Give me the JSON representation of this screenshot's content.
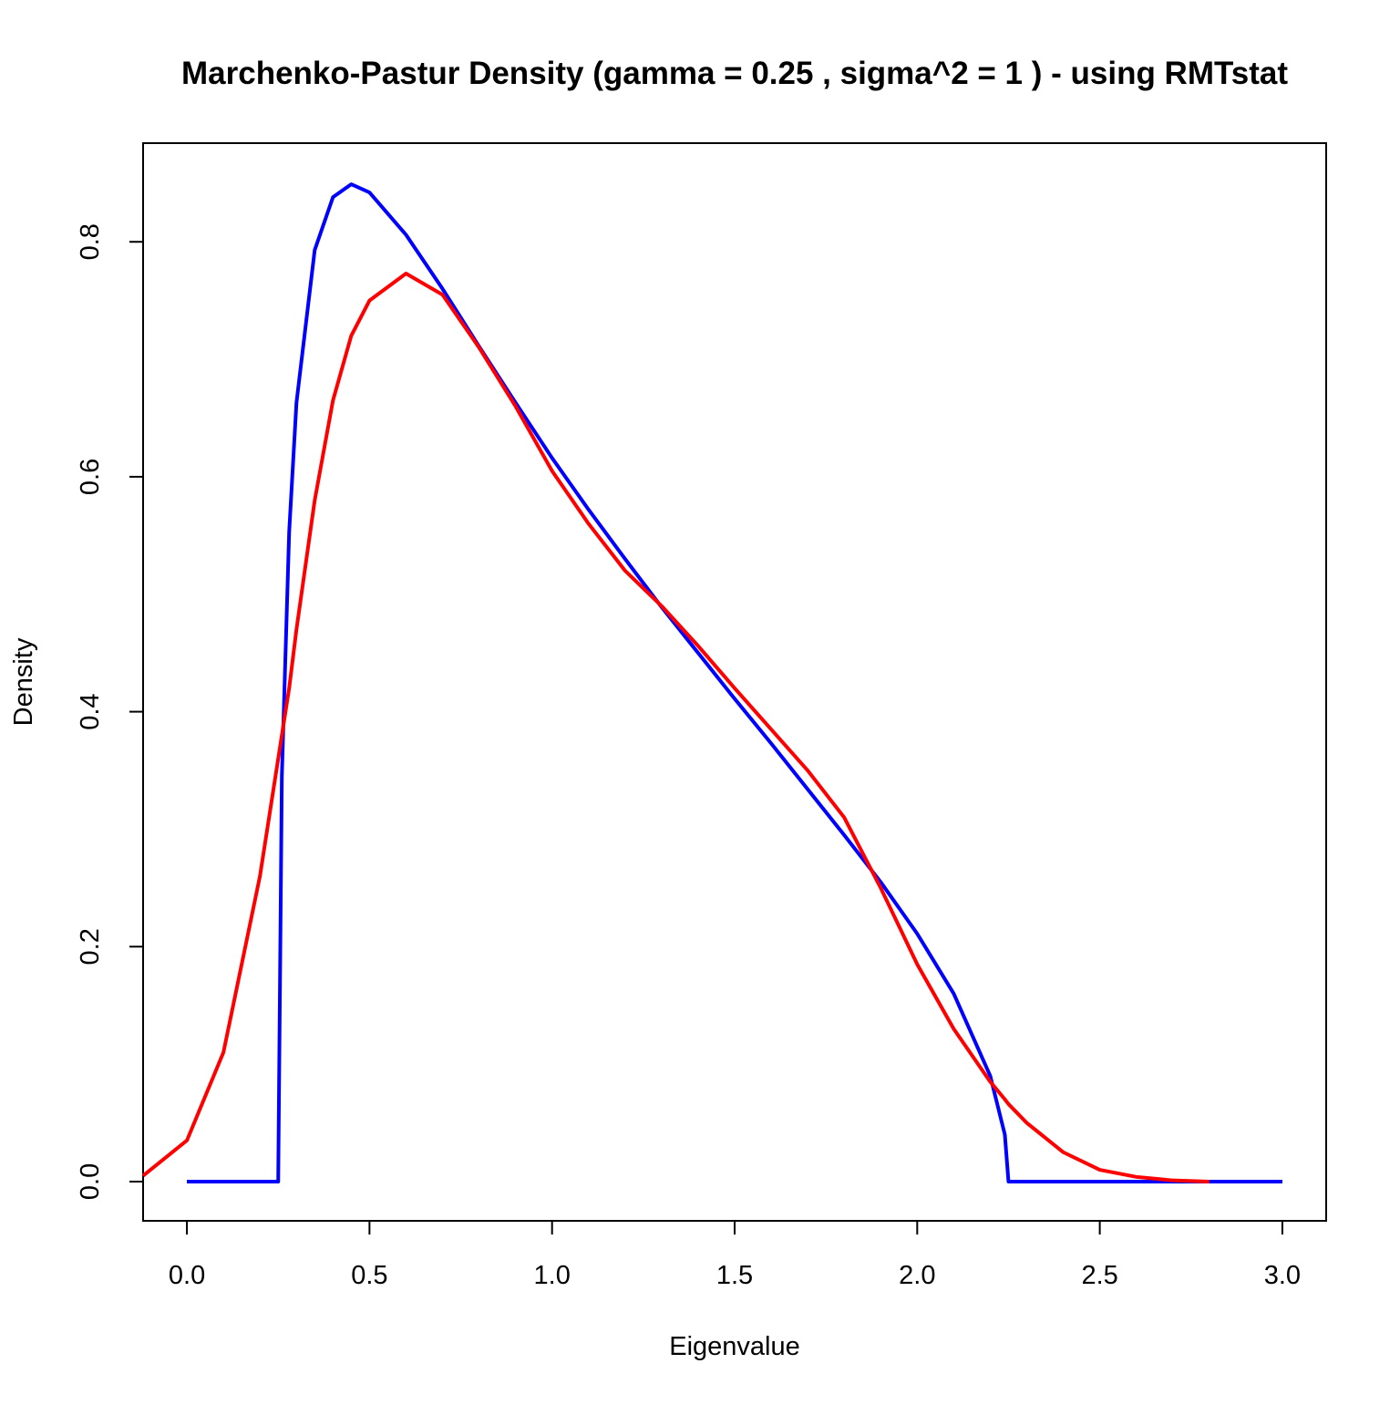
{
  "chart_data": {
    "type": "line",
    "title": "Marchenko-Pastur Density (gamma = 0.25 , sigma^2 = 1 ) - using RMTstat",
    "x_label": "Eigenvalue",
    "y_label": "Density",
    "x": [
      -0.12,
      0,
      0.1,
      0.2,
      0.25,
      0.26,
      0.28,
      0.3,
      0.35,
      0.4,
      0.45,
      0.5,
      0.6,
      0.7,
      0.8,
      0.9,
      1.0,
      1.1,
      1.2,
      1.3,
      1.4,
      1.5,
      1.6,
      1.7,
      1.8,
      1.9,
      2.0,
      2.1,
      2.2,
      2.24,
      2.25,
      2.3,
      2.4,
      2.5,
      2.6,
      2.7,
      2.8,
      2.9,
      3.0
    ],
    "series": [
      {
        "color": "#0000ff",
        "values": [
          null,
          0,
          0,
          0,
          0,
          0.345,
          0.553,
          0.663,
          0.793,
          0.838,
          0.849,
          0.842,
          0.806,
          0.76,
          0.711,
          0.663,
          0.616,
          0.572,
          0.53,
          0.489,
          0.45,
          0.411,
          0.373,
          0.334,
          0.295,
          0.255,
          0.211,
          0.16,
          0.09,
          0.04,
          0,
          0,
          0,
          0,
          0,
          0,
          0,
          0,
          0
        ]
      },
      {
        "color": "#ff0000",
        "values": [
          0.005,
          0.035,
          0.11,
          0.26,
          0.36,
          0.38,
          0.42,
          0.47,
          0.58,
          0.665,
          0.72,
          0.75,
          0.773,
          0.755,
          0.71,
          0.66,
          0.605,
          0.56,
          0.52,
          0.49,
          0.456,
          0.42,
          0.385,
          0.35,
          0.31,
          0.25,
          0.185,
          0.13,
          0.085,
          0.07,
          0.066,
          0.05,
          0.025,
          0.01,
          0.004,
          0.001,
          0,
          null,
          null
        ]
      }
    ],
    "xlim": [
      -0.12,
      3.12
    ],
    "ylim": [
      -0.0334,
      0.884
    ],
    "xticks": [
      {
        "value": 0,
        "label": "0.0"
      },
      0.5,
      {
        "value": 1,
        "label": "1.0"
      },
      1.5,
      {
        "value": 2,
        "label": "2.0"
      },
      2.5,
      {
        "value": 3,
        "label": "3.0"
      }
    ],
    "yticks": [
      {
        "value": 0,
        "label": "0.0"
      },
      0.2,
      0.4,
      0.6,
      0.8
    ],
    "grid": false
  }
}
